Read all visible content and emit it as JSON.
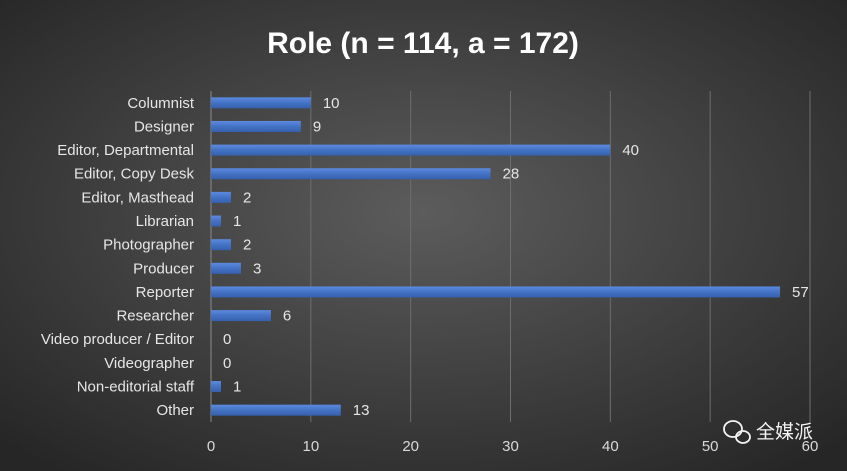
{
  "chart_data": {
    "type": "barh",
    "title": "Role (n = 114, a = 172)",
    "categories": [
      "Columnist",
      "Designer",
      "Editor, Departmental",
      "Editor, Copy Desk",
      "Editor, Masthead",
      "Librarian",
      "Photographer",
      "Producer",
      "Reporter",
      "Researcher",
      "Video producer / Editor",
      "Videographer",
      "Non-editorial staff",
      "Other"
    ],
    "values": [
      10,
      9,
      40,
      28,
      2,
      1,
      2,
      3,
      57,
      6,
      0,
      0,
      1,
      13
    ],
    "color": "#4472c4",
    "xlim": [
      0,
      60
    ],
    "xticks": [
      0,
      10,
      20,
      30,
      40,
      50,
      60
    ],
    "grid": true,
    "annotation": "全媒派"
  }
}
